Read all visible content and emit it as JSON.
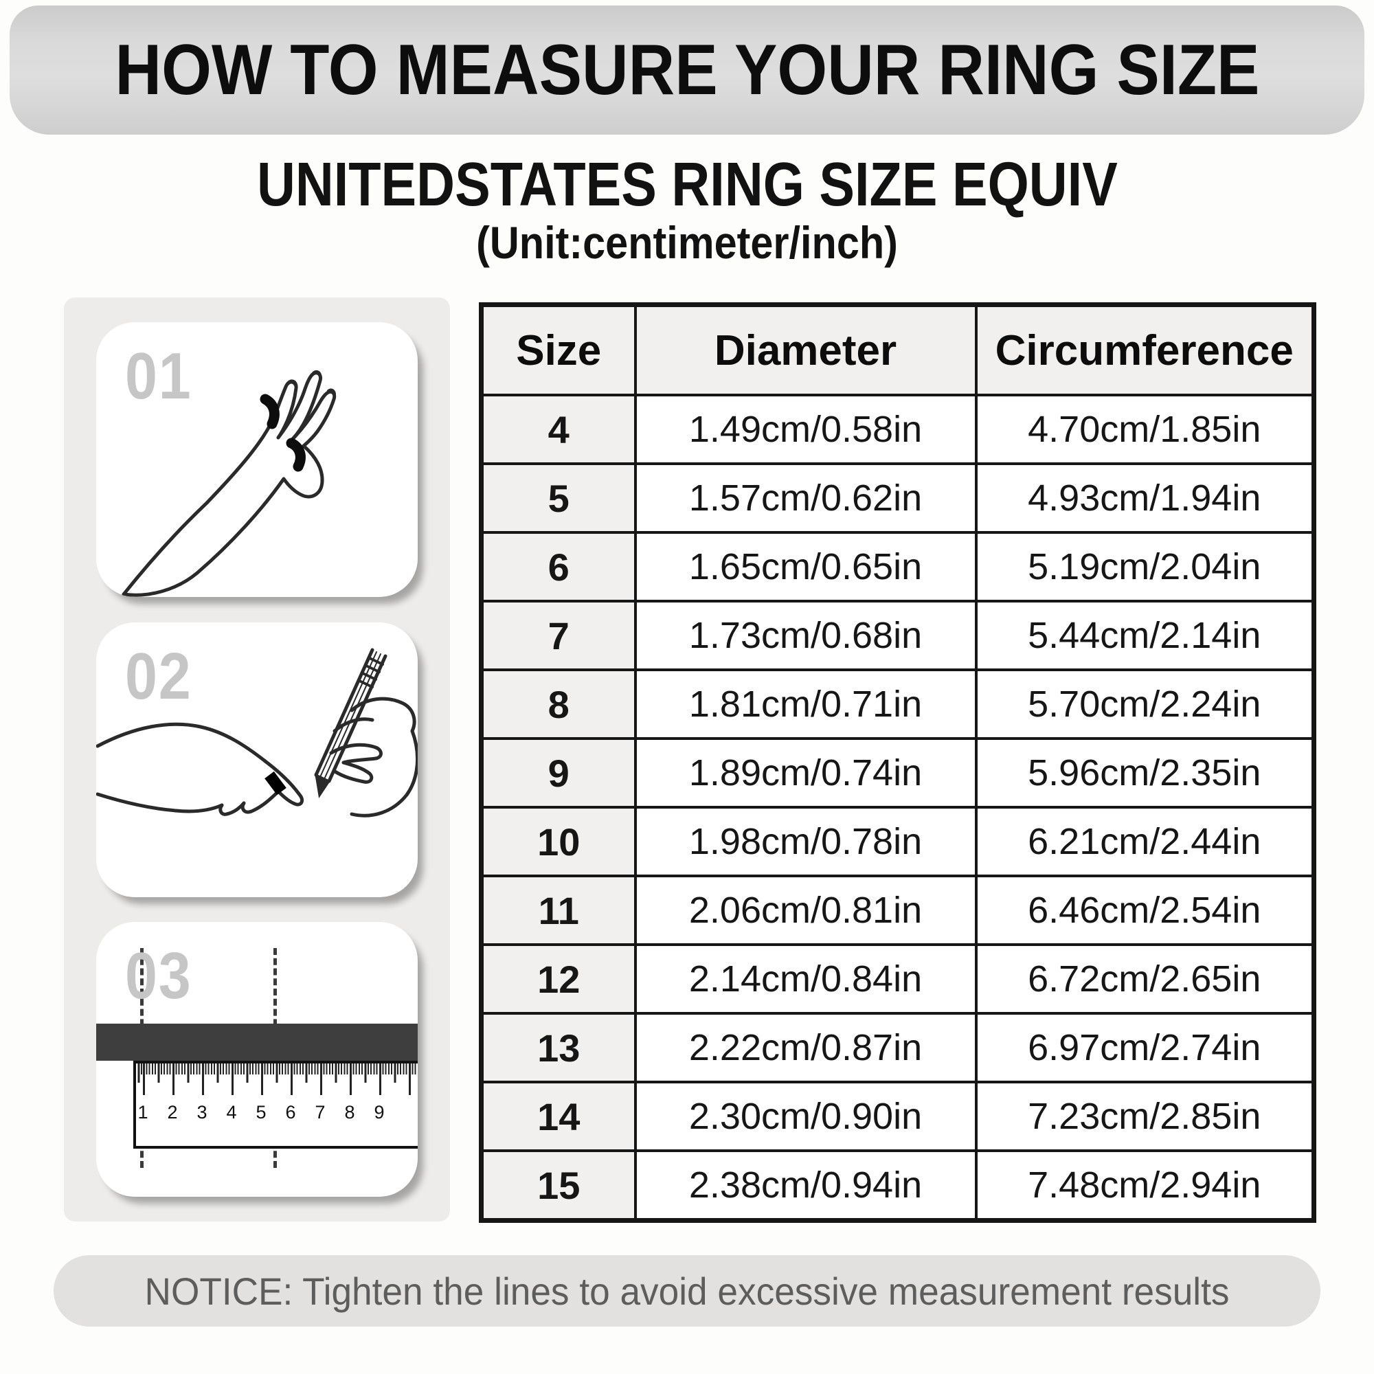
{
  "header": {
    "title": "HOW TO MEASURE YOUR RING SIZE"
  },
  "subtitle": {
    "line1": "UNITEDSTATES RING SIZE EQUIV",
    "line2": "(Unit:centimeter/inch)"
  },
  "steps": [
    {
      "number": "01",
      "illustration": "hand-with-ring-marks"
    },
    {
      "number": "02",
      "illustration": "hand-marked-with-pen"
    },
    {
      "number": "03",
      "illustration": "ruler-measurement"
    }
  ],
  "ruler": {
    "numbers": [
      "1",
      "2",
      "3",
      "4",
      "5",
      "6",
      "7",
      "8",
      "9"
    ]
  },
  "table": {
    "columns": [
      "Size",
      "Diameter",
      "Circumference"
    ],
    "rows": [
      {
        "size": "4",
        "diameter": "1.49cm/0.58in",
        "circumference": "4.70cm/1.85in"
      },
      {
        "size": "5",
        "diameter": "1.57cm/0.62in",
        "circumference": "4.93cm/1.94in"
      },
      {
        "size": "6",
        "diameter": "1.65cm/0.65in",
        "circumference": "5.19cm/2.04in"
      },
      {
        "size": "7",
        "diameter": "1.73cm/0.68in",
        "circumference": "5.44cm/2.14in"
      },
      {
        "size": "8",
        "diameter": "1.81cm/0.71in",
        "circumference": "5.70cm/2.24in"
      },
      {
        "size": "9",
        "diameter": "1.89cm/0.74in",
        "circumference": "5.96cm/2.35in"
      },
      {
        "size": "10",
        "diameter": "1.98cm/0.78in",
        "circumference": "6.21cm/2.44in"
      },
      {
        "size": "11",
        "diameter": "2.06cm/0.81in",
        "circumference": "6.46cm/2.54in"
      },
      {
        "size": "12",
        "diameter": "2.14cm/0.84in",
        "circumference": "6.72cm/2.65in"
      },
      {
        "size": "13",
        "diameter": "2.22cm/0.87in",
        "circumference": "6.97cm/2.74in"
      },
      {
        "size": "14",
        "diameter": "2.30cm/0.90in",
        "circumference": "7.23cm/2.85in"
      },
      {
        "size": "15",
        "diameter": "2.38cm/0.94in",
        "circumference": "7.48cm/2.94in"
      }
    ]
  },
  "notice": {
    "text": "NOTICE: Tighten the lines to avoid excessive measurement results"
  },
  "colors": {
    "banner_bg": "#d6d6d6",
    "panel_bg": "#edecea",
    "header_cell_bg": "#f1f0ee",
    "table_border": "#161616",
    "notice_bg": "#e2e1df",
    "notice_text": "#5d5d5d",
    "step_number": "#c6c6c6"
  }
}
